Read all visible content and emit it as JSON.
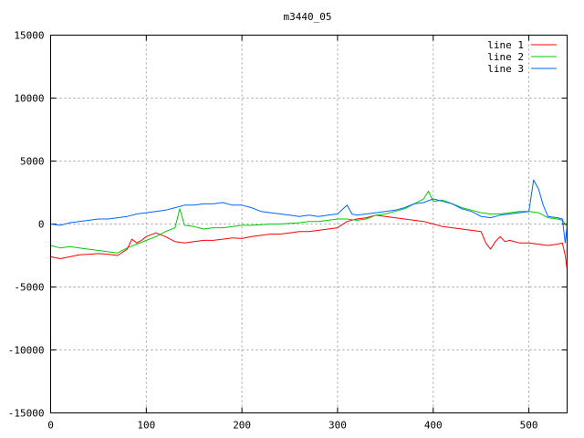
{
  "chart_data": {
    "type": "line",
    "title": "m3440_05",
    "xlabel": "",
    "ylabel": "",
    "xlim": [
      0,
      540
    ],
    "ylim": [
      -15000,
      15000
    ],
    "x_ticks": [
      0,
      100,
      200,
      300,
      400,
      500
    ],
    "y_ticks": [
      -15000,
      -10000,
      -5000,
      0,
      5000,
      10000,
      15000
    ],
    "grid": true,
    "legend_position": "top-right",
    "series": [
      {
        "name": "line 1",
        "color": "#ff0000",
        "points": [
          [
            0,
            -2600
          ],
          [
            10,
            -2750
          ],
          [
            20,
            -2600
          ],
          [
            30,
            -2450
          ],
          [
            40,
            -2400
          ],
          [
            50,
            -2350
          ],
          [
            60,
            -2400
          ],
          [
            70,
            -2500
          ],
          [
            80,
            -2000
          ],
          [
            85,
            -1200
          ],
          [
            90,
            -1500
          ],
          [
            95,
            -1300
          ],
          [
            100,
            -1000
          ],
          [
            110,
            -700
          ],
          [
            120,
            -1000
          ],
          [
            130,
            -1400
          ],
          [
            140,
            -1500
          ],
          [
            150,
            -1400
          ],
          [
            160,
            -1300
          ],
          [
            170,
            -1300
          ],
          [
            180,
            -1200
          ],
          [
            190,
            -1100
          ],
          [
            200,
            -1150
          ],
          [
            210,
            -1000
          ],
          [
            220,
            -900
          ],
          [
            230,
            -800
          ],
          [
            240,
            -800
          ],
          [
            250,
            -700
          ],
          [
            260,
            -600
          ],
          [
            270,
            -600
          ],
          [
            280,
            -500
          ],
          [
            290,
            -400
          ],
          [
            300,
            -300
          ],
          [
            310,
            200
          ],
          [
            320,
            400
          ],
          [
            330,
            500
          ],
          [
            340,
            700
          ],
          [
            350,
            600
          ],
          [
            360,
            500
          ],
          [
            370,
            400
          ],
          [
            380,
            300
          ],
          [
            390,
            200
          ],
          [
            400,
            0
          ],
          [
            410,
            -200
          ],
          [
            420,
            -300
          ],
          [
            430,
            -400
          ],
          [
            440,
            -500
          ],
          [
            450,
            -600
          ],
          [
            455,
            -1500
          ],
          [
            460,
            -2000
          ],
          [
            465,
            -1400
          ],
          [
            470,
            -1000
          ],
          [
            475,
            -1400
          ],
          [
            480,
            -1300
          ],
          [
            490,
            -1500
          ],
          [
            500,
            -1500
          ],
          [
            510,
            -1600
          ],
          [
            520,
            -1700
          ],
          [
            530,
            -1600
          ],
          [
            535,
            -1500
          ],
          [
            538,
            -2500
          ],
          [
            540,
            -3600
          ]
        ]
      },
      {
        "name": "line 2",
        "color": "#00cc00",
        "points": [
          [
            0,
            -1700
          ],
          [
            10,
            -1900
          ],
          [
            20,
            -1800
          ],
          [
            30,
            -1900
          ],
          [
            40,
            -2000
          ],
          [
            50,
            -2100
          ],
          [
            60,
            -2200
          ],
          [
            70,
            -2300
          ],
          [
            80,
            -1900
          ],
          [
            90,
            -1600
          ],
          [
            100,
            -1300
          ],
          [
            110,
            -1000
          ],
          [
            120,
            -600
          ],
          [
            130,
            -300
          ],
          [
            135,
            1200
          ],
          [
            140,
            -100
          ],
          [
            150,
            -200
          ],
          [
            160,
            -400
          ],
          [
            170,
            -300
          ],
          [
            180,
            -300
          ],
          [
            190,
            -200
          ],
          [
            200,
            -100
          ],
          [
            210,
            -100
          ],
          [
            220,
            -50
          ],
          [
            230,
            0
          ],
          [
            240,
            0
          ],
          [
            250,
            50
          ],
          [
            260,
            100
          ],
          [
            270,
            200
          ],
          [
            280,
            200
          ],
          [
            290,
            300
          ],
          [
            300,
            400
          ],
          [
            310,
            400
          ],
          [
            320,
            300
          ],
          [
            330,
            400
          ],
          [
            340,
            700
          ],
          [
            350,
            800
          ],
          [
            360,
            1000
          ],
          [
            370,
            1200
          ],
          [
            380,
            1600
          ],
          [
            390,
            2000
          ],
          [
            395,
            2600
          ],
          [
            400,
            1800
          ],
          [
            410,
            1900
          ],
          [
            420,
            1600
          ],
          [
            430,
            1300
          ],
          [
            440,
            1100
          ],
          [
            450,
            900
          ],
          [
            460,
            800
          ],
          [
            470,
            800
          ],
          [
            480,
            900
          ],
          [
            490,
            1000
          ],
          [
            500,
            1000
          ],
          [
            510,
            900
          ],
          [
            520,
            500
          ],
          [
            530,
            400
          ],
          [
            535,
            300
          ],
          [
            540,
            -200
          ]
        ]
      },
      {
        "name": "line 3",
        "color": "#0066ff",
        "points": [
          [
            0,
            0
          ],
          [
            10,
            -100
          ],
          [
            20,
            100
          ],
          [
            30,
            200
          ],
          [
            40,
            300
          ],
          [
            50,
            400
          ],
          [
            60,
            400
          ],
          [
            70,
            500
          ],
          [
            80,
            600
          ],
          [
            90,
            800
          ],
          [
            100,
            900
          ],
          [
            110,
            1000
          ],
          [
            120,
            1100
          ],
          [
            130,
            1300
          ],
          [
            140,
            1500
          ],
          [
            150,
            1500
          ],
          [
            160,
            1600
          ],
          [
            170,
            1600
          ],
          [
            180,
            1700
          ],
          [
            190,
            1500
          ],
          [
            200,
            1500
          ],
          [
            210,
            1300
          ],
          [
            220,
            1000
          ],
          [
            230,
            900
          ],
          [
            240,
            800
          ],
          [
            250,
            700
          ],
          [
            260,
            600
          ],
          [
            270,
            700
          ],
          [
            280,
            600
          ],
          [
            290,
            700
          ],
          [
            300,
            800
          ],
          [
            310,
            1500
          ],
          [
            315,
            800
          ],
          [
            320,
            700
          ],
          [
            330,
            800
          ],
          [
            340,
            900
          ],
          [
            350,
            1000
          ],
          [
            360,
            1100
          ],
          [
            370,
            1300
          ],
          [
            380,
            1600
          ],
          [
            390,
            1700
          ],
          [
            400,
            2000
          ],
          [
            410,
            1800
          ],
          [
            420,
            1600
          ],
          [
            430,
            1200
          ],
          [
            440,
            1000
          ],
          [
            450,
            600
          ],
          [
            460,
            500
          ],
          [
            470,
            700
          ],
          [
            480,
            800
          ],
          [
            490,
            900
          ],
          [
            500,
            1000
          ],
          [
            505,
            3500
          ],
          [
            510,
            2800
          ],
          [
            515,
            1500
          ],
          [
            520,
            600
          ],
          [
            530,
            500
          ],
          [
            535,
            400
          ],
          [
            538,
            -1500
          ],
          [
            540,
            -200
          ]
        ]
      }
    ]
  }
}
